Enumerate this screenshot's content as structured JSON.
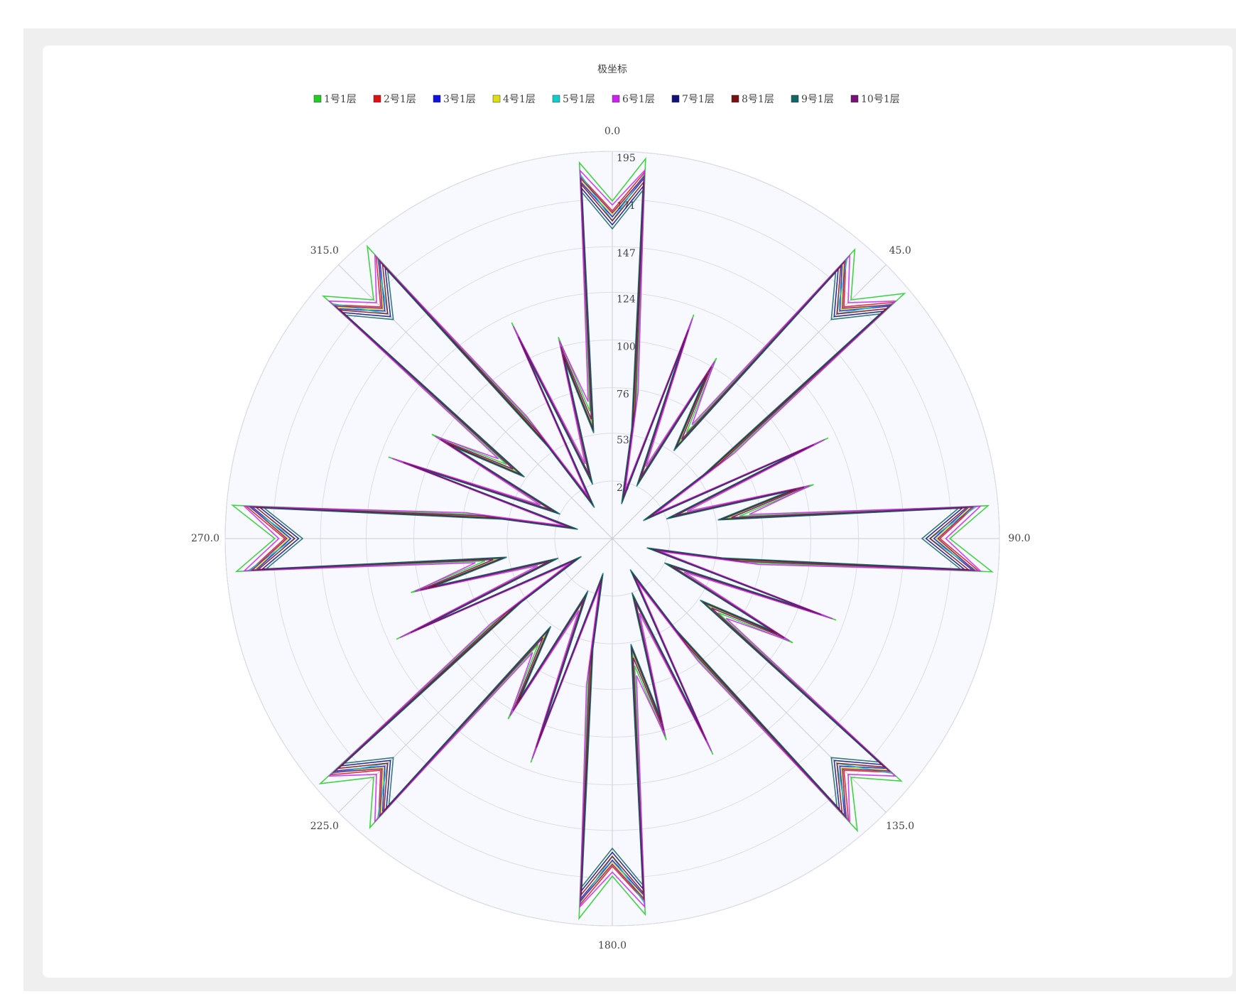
{
  "chart_data": {
    "type": "polar",
    "title": "极坐标",
    "x": [
      0,
      5,
      10,
      15,
      20,
      25,
      30,
      35,
      40,
      45,
      50,
      55,
      60,
      65,
      70,
      75,
      80,
      85,
      90,
      95,
      100,
      105,
      110,
      115,
      120,
      125,
      130,
      135,
      140,
      145,
      150,
      155,
      160,
      165,
      170,
      175,
      180,
      185,
      190,
      195,
      200,
      205,
      210,
      215,
      220,
      225,
      230,
      235,
      240,
      245,
      250,
      255,
      260,
      265,
      270,
      275,
      280,
      285,
      290,
      295,
      300,
      305,
      310,
      315,
      320,
      325,
      330,
      335,
      340,
      345,
      350,
      355
    ],
    "xticks": [
      {
        "value": 0,
        "label": "0.0"
      },
      {
        "value": 45,
        "label": "45.0"
      },
      {
        "value": 90,
        "label": "90.0"
      },
      {
        "value": 135,
        "label": "135.0"
      },
      {
        "value": 180,
        "label": "180.0"
      },
      {
        "value": 225,
        "label": "225.0"
      },
      {
        "value": 270,
        "label": "270.0"
      },
      {
        "value": 315,
        "label": "315.0"
      }
    ],
    "rlim": [
      0,
      195
    ],
    "rticks": [
      29,
      53,
      76,
      100,
      124,
      147,
      171,
      195
    ],
    "grid": true,
    "series": [
      {
        "name": "1号1层",
        "color": "#22cc22",
        "values": [
          170,
          192,
          70,
          20,
          120,
          35,
          105,
          65,
          190,
          170,
          192,
          70,
          20,
          120,
          35,
          105,
          65,
          190,
          170,
          192,
          70,
          20,
          120,
          35,
          105,
          65,
          190,
          170,
          192,
          70,
          20,
          120,
          35,
          105,
          65,
          190,
          170,
          192,
          70,
          20,
          120,
          35,
          105,
          65,
          190,
          170,
          192,
          70,
          20,
          120,
          35,
          105,
          65,
          190,
          170,
          192,
          70,
          20,
          120,
          35,
          105,
          65,
          190,
          170,
          192,
          70,
          20,
          120,
          35,
          105,
          65,
          190
        ]
      },
      {
        "name": "2号1层",
        "color": "#dd1111",
        "values": [
          165,
          185,
          65,
          22,
          112,
          33,
          100,
          60,
          183,
          165,
          185,
          65,
          22,
          112,
          33,
          100,
          60,
          183,
          165,
          185,
          65,
          22,
          112,
          33,
          100,
          60,
          183,
          165,
          185,
          65,
          22,
          112,
          33,
          100,
          60,
          183,
          165,
          185,
          65,
          22,
          112,
          33,
          100,
          60,
          183,
          165,
          185,
          65,
          22,
          112,
          33,
          100,
          60,
          183,
          165,
          185,
          65,
          22,
          112,
          33,
          100,
          60,
          183,
          165,
          185,
          65,
          22,
          112,
          33,
          100,
          60,
          183
        ]
      },
      {
        "name": "3号1层",
        "color": "#1111dd",
        "values": [
          162,
          182,
          62,
          20,
          110,
          32,
          98,
          58,
          180,
          162,
          182,
          62,
          20,
          110,
          32,
          98,
          58,
          180,
          162,
          182,
          62,
          20,
          110,
          32,
          98,
          58,
          180,
          162,
          182,
          62,
          20,
          110,
          32,
          98,
          58,
          180,
          162,
          182,
          62,
          20,
          110,
          32,
          98,
          58,
          180,
          162,
          182,
          62,
          20,
          110,
          32,
          98,
          58,
          180,
          162,
          182,
          62,
          20,
          110,
          32,
          98,
          58,
          180,
          162,
          182,
          62,
          20,
          110,
          32,
          98,
          58,
          180
        ]
      },
      {
        "name": "4号1层",
        "color": "#dddd11",
        "values": [
          163,
          183,
          63,
          21,
          111,
          32,
          99,
          59,
          181,
          163,
          183,
          63,
          21,
          111,
          32,
          99,
          59,
          181,
          163,
          183,
          63,
          21,
          111,
          32,
          99,
          59,
          181,
          163,
          183,
          63,
          21,
          111,
          32,
          99,
          59,
          181,
          163,
          183,
          63,
          21,
          111,
          32,
          99,
          59,
          181,
          163,
          183,
          63,
          21,
          111,
          32,
          99,
          59,
          181,
          163,
          183,
          63,
          21,
          111,
          32,
          99,
          59,
          181,
          163,
          183,
          63,
          21,
          111,
          32,
          99,
          59,
          181
        ]
      },
      {
        "name": "5号1层",
        "color": "#11cccc",
        "values": [
          160,
          184,
          60,
          20,
          108,
          30,
          96,
          57,
          184,
          160,
          184,
          60,
          20,
          108,
          30,
          96,
          57,
          184,
          160,
          184,
          60,
          20,
          108,
          30,
          96,
          57,
          184,
          160,
          184,
          60,
          20,
          108,
          30,
          96,
          57,
          184,
          160,
          184,
          60,
          20,
          108,
          30,
          96,
          57,
          184,
          160,
          184,
          60,
          20,
          108,
          30,
          96,
          57,
          184,
          160,
          184,
          60,
          20,
          108,
          30,
          96,
          57,
          184,
          160,
          184,
          60,
          20,
          108,
          30,
          96,
          57,
          184
        ]
      },
      {
        "name": "6号1层",
        "color": "#cc22ee",
        "values": [
          168,
          186,
          75,
          25,
          118,
          40,
          103,
          70,
          186,
          168,
          186,
          75,
          25,
          118,
          40,
          103,
          70,
          186,
          168,
          186,
          75,
          25,
          118,
          40,
          103,
          70,
          186,
          168,
          186,
          75,
          25,
          118,
          40,
          103,
          70,
          186,
          168,
          186,
          75,
          25,
          118,
          40,
          103,
          70,
          186,
          168,
          186,
          75,
          25,
          118,
          40,
          103,
          70,
          186,
          168,
          186,
          75,
          25,
          118,
          40,
          103,
          70,
          186,
          168,
          186,
          75,
          25,
          118,
          40,
          103,
          70,
          186
        ]
      },
      {
        "name": "7号1层",
        "color": "#111177",
        "values": [
          158,
          178,
          58,
          19,
          106,
          30,
          94,
          55,
          177,
          158,
          178,
          58,
          19,
          106,
          30,
          94,
          55,
          177,
          158,
          178,
          58,
          19,
          106,
          30,
          94,
          55,
          177,
          158,
          178,
          58,
          19,
          106,
          30,
          94,
          55,
          177,
          158,
          178,
          58,
          19,
          106,
          30,
          94,
          55,
          177,
          158,
          178,
          58,
          19,
          106,
          30,
          94,
          55,
          177,
          158,
          178,
          58,
          19,
          106,
          30,
          94,
          55,
          177,
          158,
          178,
          58,
          19,
          106,
          30,
          94,
          55,
          177
        ]
      },
      {
        "name": "8号1层",
        "color": "#771111",
        "values": [
          160,
          180,
          60,
          20,
          108,
          31,
          96,
          56,
          179,
          160,
          180,
          60,
          20,
          108,
          31,
          96,
          56,
          179,
          160,
          180,
          60,
          20,
          108,
          31,
          96,
          56,
          179,
          160,
          180,
          60,
          20,
          108,
          31,
          96,
          56,
          179,
          160,
          180,
          60,
          20,
          108,
          31,
          96,
          56,
          179,
          160,
          180,
          60,
          20,
          108,
          31,
          96,
          56,
          179,
          160,
          180,
          60,
          20,
          108,
          31,
          96,
          56,
          179,
          160,
          180,
          60,
          20,
          108,
          31,
          96,
          56,
          179
        ]
      },
      {
        "name": "9号1层",
        "color": "#116666",
        "values": [
          156,
          176,
          56,
          18,
          104,
          29,
          92,
          54,
          175,
          156,
          176,
          56,
          18,
          104,
          29,
          92,
          54,
          175,
          156,
          176,
          56,
          18,
          104,
          29,
          92,
          54,
          175,
          156,
          176,
          56,
          18,
          104,
          29,
          92,
          54,
          175,
          156,
          176,
          56,
          18,
          104,
          29,
          92,
          54,
          175,
          156,
          176,
          56,
          18,
          104,
          29,
          92,
          54,
          175,
          156,
          176,
          56,
          18,
          104,
          29,
          92,
          54,
          175,
          156,
          176,
          56,
          18,
          104,
          29,
          92,
          54,
          175
        ]
      },
      {
        "name": "10号1层",
        "color": "#771177",
        "values": [
          164,
          183,
          66,
          22,
          112,
          34,
          100,
          61,
          182,
          164,
          183,
          66,
          22,
          112,
          34,
          100,
          61,
          182,
          164,
          183,
          66,
          22,
          112,
          34,
          100,
          61,
          182,
          164,
          183,
          66,
          22,
          112,
          34,
          100,
          61,
          182,
          164,
          183,
          66,
          22,
          112,
          34,
          100,
          61,
          182,
          164,
          183,
          66,
          22,
          112,
          34,
          100,
          61,
          182,
          164,
          183,
          66,
          22,
          112,
          34,
          100,
          61,
          182,
          164,
          183,
          66,
          22,
          112,
          34,
          100,
          61,
          182
        ]
      }
    ]
  }
}
